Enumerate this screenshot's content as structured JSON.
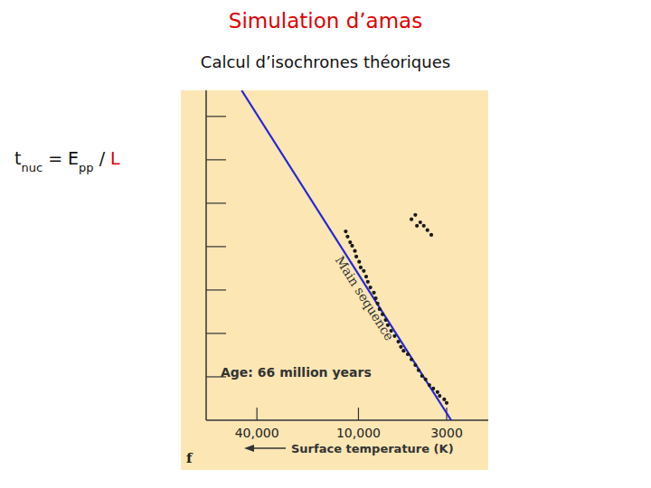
{
  "slide": {
    "title": "Simulation d’amas",
    "title_color": "#e00000",
    "subtitle": "Calcul d’isochrones théoriques",
    "formula": [
      {
        "text": "t"
      },
      {
        "text": "nuc",
        "sub": true
      },
      {
        "text": " = E"
      },
      {
        "text": "pp",
        "sub": true
      },
      {
        "text": " / "
      },
      {
        "text": "L",
        "color": "#e00000"
      }
    ]
  },
  "chart_data": {
    "type": "scatter",
    "log": "x",
    "grid": false,
    "tick_labels": "x",
    "xlabel": "Surface temperature (K)",
    "annotations": [
      "Age: 66 million years",
      "f"
    ],
    "xlim": [
      80000,
      1700
    ],
    "xticks": [
      {
        "value": 40000,
        "label": "40,000"
      },
      {
        "value": 10000,
        "label": "10,000"
      },
      3000
    ],
    "ylim": [
      0,
      7.6
    ],
    "yticks": [
      1,
      2,
      3,
      4,
      5,
      6,
      7
    ],
    "series": [
      {
        "name": "Main sequence",
        "type": "line",
        "color": "#2626d9",
        "line_style": "solid",
        "x": [
          49300,
          2820
        ],
        "values": [
          7.6,
          0
        ]
      },
      {
        "type": "scatter",
        "color": "#1a1a1a",
        "marker": "circle",
        "x": [
          11900,
          11600,
          11200,
          10900,
          10500,
          10300,
          9900,
          9700,
          9300,
          9000,
          8800,
          8500,
          8100,
          7900,
          7700,
          7500,
          7200,
          6900,
          6700,
          6400,
          6100,
          5800,
          5600,
          5400,
          5100,
          4850,
          4600,
          4400,
          4200,
          4000,
          3800,
          3600,
          3400,
          3300,
          3100,
          3000,
          4850,
          4600,
          4300,
          4100,
          3900,
          3700,
          4500
        ],
        "values": [
          4.35,
          4.23,
          4.1,
          4.02,
          3.9,
          3.77,
          3.65,
          3.52,
          3.44,
          3.31,
          3.19,
          3.06,
          2.94,
          2.81,
          2.69,
          2.56,
          2.44,
          2.31,
          2.19,
          2.06,
          1.94,
          1.81,
          1.69,
          1.6,
          1.52,
          1.4,
          1.27,
          1.15,
          1.02,
          0.94,
          0.81,
          0.73,
          0.65,
          0.56,
          0.48,
          0.4,
          4.63,
          4.73,
          4.56,
          4.48,
          4.38,
          4.27,
          4.48
        ]
      }
    ]
  }
}
